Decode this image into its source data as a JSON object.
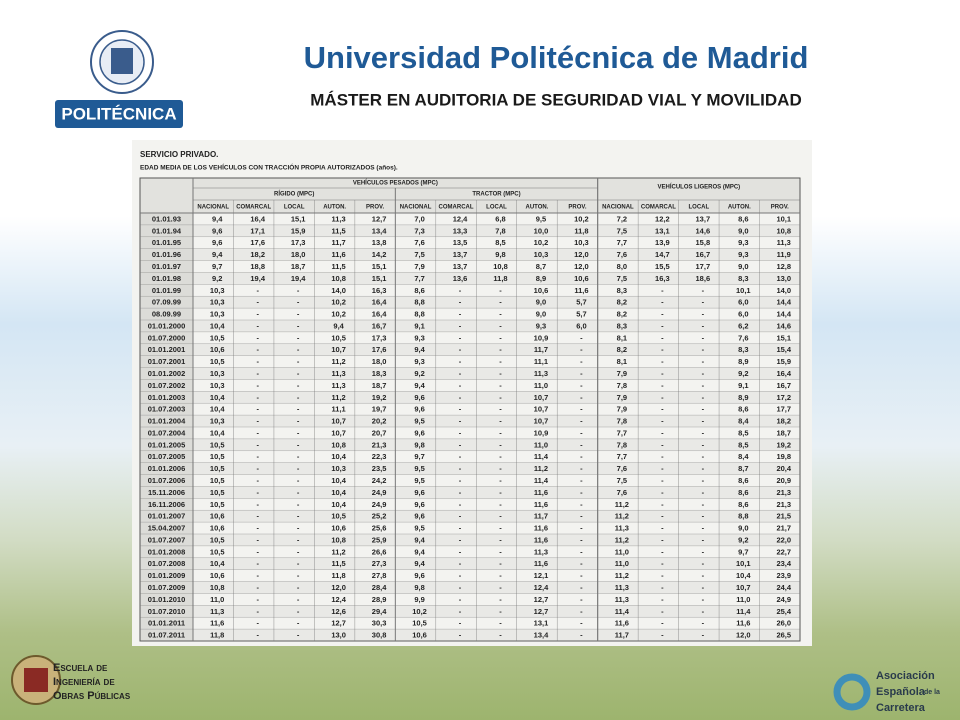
{
  "header": {
    "title": "Universidad Politécnica de Madrid",
    "subtitle": "MÁSTER EN AUDITORIA DE SEGURIDAD VIAL Y MOVILIDAD",
    "logo_text": "POLITÉCNICA"
  },
  "table": {
    "section": "SERVICIO PRIVADO.",
    "caption": "EDAD MEDIA DE LOS VEHÍCULOS CON TRACCIÓN PROPIA AUTORIZADOS (años).",
    "groups": [
      {
        "label": "VEHÍCULOS PESADOS (MPC)",
        "subgroups": [
          {
            "label": "RÍGIDO (MPC)"
          },
          {
            "label": "TRACTOR (MPC)"
          }
        ]
      },
      {
        "label": "VEHÍCULOS LIGEROS (MPC)"
      }
    ],
    "columns": [
      "NACIONAL",
      "COMARCAL",
      "LOCAL",
      "AUTON.",
      "PROV.",
      "NACIONAL",
      "COMARCAL",
      "LOCAL",
      "AUTON.",
      "PROV.",
      "NACIONAL",
      "COMARCAL",
      "LOCAL",
      "AUTON.",
      "PROV."
    ],
    "rows": [
      [
        "01.01.93",
        "9,4",
        "16,4",
        "15,1",
        "11,3",
        "12,7",
        "7,0",
        "12,4",
        "6,8",
        "9,5",
        "10,2",
        "7,2",
        "12,2",
        "13,7",
        "8,6",
        "10,1"
      ],
      [
        "01.01.94",
        "9,6",
        "17,1",
        "15,9",
        "11,5",
        "13,4",
        "7,3",
        "13,3",
        "7,8",
        "10,0",
        "11,8",
        "7,5",
        "13,1",
        "14,6",
        "9,0",
        "10,8"
      ],
      [
        "01.01.95",
        "9,6",
        "17,6",
        "17,3",
        "11,7",
        "13,8",
        "7,6",
        "13,5",
        "8,5",
        "10,2",
        "10,3",
        "7,7",
        "13,9",
        "15,8",
        "9,3",
        "11,3"
      ],
      [
        "01.01.96",
        "9,4",
        "18,2",
        "18,0",
        "11,6",
        "14,2",
        "7,5",
        "13,7",
        "9,8",
        "10,3",
        "12,0",
        "7,6",
        "14,7",
        "16,7",
        "9,3",
        "11,9"
      ],
      [
        "01.01.97",
        "9,7",
        "18,8",
        "18,7",
        "11,5",
        "15,1",
        "7,9",
        "13,7",
        "10,8",
        "8,7",
        "12,0",
        "8,0",
        "15,5",
        "17,7",
        "9,0",
        "12,8"
      ],
      [
        "01.01.98",
        "9,2",
        "19,4",
        "19,4",
        "10,8",
        "15,1",
        "7,7",
        "13,6",
        "11,8",
        "8,9",
        "10,6",
        "7,5",
        "16,3",
        "18,6",
        "8,3",
        "13,0"
      ],
      [
        "01.01.99",
        "10,3",
        "-",
        "-",
        "14,0",
        "16,3",
        "8,6",
        "-",
        "-",
        "10,6",
        "11,6",
        "8,3",
        "-",
        "-",
        "10,1",
        "14,0"
      ],
      [
        "07.09.99",
        "10,3",
        "-",
        "-",
        "10,2",
        "16,4",
        "8,8",
        "-",
        "-",
        "9,0",
        "5,7",
        "8,2",
        "-",
        "-",
        "6,0",
        "14,4"
      ],
      [
        "08.09.99",
        "10,3",
        "-",
        "-",
        "10,2",
        "16,4",
        "8,8",
        "-",
        "-",
        "9,0",
        "5,7",
        "8,2",
        "-",
        "-",
        "6,0",
        "14,4"
      ],
      [
        "01.01.2000",
        "10,4",
        "-",
        "-",
        "9,4",
        "16,7",
        "9,1",
        "-",
        "-",
        "9,3",
        "6,0",
        "8,3",
        "-",
        "-",
        "6,2",
        "14,6"
      ],
      [
        "01.07.2000",
        "10,5",
        "-",
        "-",
        "10,5",
        "17,3",
        "9,3",
        "-",
        "-",
        "10,9",
        "-",
        "8,1",
        "-",
        "-",
        "7,6",
        "15,1"
      ],
      [
        "01.01.2001",
        "10,6",
        "-",
        "-",
        "10,7",
        "17,6",
        "9,4",
        "-",
        "-",
        "11,7",
        "-",
        "8,2",
        "-",
        "-",
        "8,3",
        "15,4"
      ],
      [
        "01.07.2001",
        "10,5",
        "-",
        "-",
        "11,2",
        "18,0",
        "9,3",
        "-",
        "-",
        "11,1",
        "-",
        "8,1",
        "-",
        "-",
        "8,9",
        "15,9"
      ],
      [
        "01.01.2002",
        "10,3",
        "-",
        "-",
        "11,3",
        "18,3",
        "9,2",
        "-",
        "-",
        "11,3",
        "-",
        "7,9",
        "-",
        "-",
        "9,2",
        "16,4"
      ],
      [
        "01.07.2002",
        "10,3",
        "-",
        "-",
        "11,3",
        "18,7",
        "9,4",
        "-",
        "-",
        "11,0",
        "-",
        "7,8",
        "-",
        "-",
        "9,1",
        "16,7"
      ],
      [
        "01.01.2003",
        "10,4",
        "-",
        "-",
        "11,2",
        "19,2",
        "9,6",
        "-",
        "-",
        "10,7",
        "-",
        "7,9",
        "-",
        "-",
        "8,9",
        "17,2"
      ],
      [
        "01.07.2003",
        "10,4",
        "-",
        "-",
        "11,1",
        "19,7",
        "9,6",
        "-",
        "-",
        "10,7",
        "-",
        "7,9",
        "-",
        "-",
        "8,6",
        "17,7"
      ],
      [
        "01.01.2004",
        "10,3",
        "-",
        "-",
        "10,7",
        "20,2",
        "9,5",
        "-",
        "-",
        "10,7",
        "-",
        "7,8",
        "-",
        "-",
        "8,4",
        "18,2"
      ],
      [
        "01.07.2004",
        "10,4",
        "-",
        "-",
        "10,7",
        "20,7",
        "9,6",
        "-",
        "-",
        "10,9",
        "-",
        "7,7",
        "-",
        "-",
        "8,5",
        "18,7"
      ],
      [
        "01.01.2005",
        "10,5",
        "-",
        "-",
        "10,8",
        "21,3",
        "9,8",
        "-",
        "-",
        "11,0",
        "-",
        "7,8",
        "-",
        "-",
        "8,5",
        "19,2"
      ],
      [
        "01.07.2005",
        "10,5",
        "-",
        "-",
        "10,4",
        "22,3",
        "9,7",
        "-",
        "-",
        "11,4",
        "-",
        "7,7",
        "-",
        "-",
        "8,4",
        "19,8"
      ],
      [
        "01.01.2006",
        "10,5",
        "-",
        "-",
        "10,3",
        "23,5",
        "9,5",
        "-",
        "-",
        "11,2",
        "-",
        "7,6",
        "-",
        "-",
        "8,7",
        "20,4"
      ],
      [
        "01.07.2006",
        "10,5",
        "-",
        "-",
        "10,4",
        "24,2",
        "9,5",
        "-",
        "-",
        "11,4",
        "-",
        "7,5",
        "-",
        "-",
        "8,6",
        "20,9"
      ],
      [
        "15.11.2006",
        "10,5",
        "-",
        "-",
        "10,4",
        "24,9",
        "9,6",
        "-",
        "-",
        "11,6",
        "-",
        "7,6",
        "-",
        "-",
        "8,6",
        "21,3"
      ],
      [
        "16.11.2006",
        "10,5",
        "-",
        "-",
        "10,4",
        "24,9",
        "9,6",
        "-",
        "-",
        "11,6",
        "-",
        "11,2",
        "-",
        "-",
        "8,6",
        "21,3"
      ],
      [
        "01.01.2007",
        "10,6",
        "-",
        "-",
        "10,5",
        "25,2",
        "9,6",
        "-",
        "-",
        "11,7",
        "-",
        "11,2",
        "-",
        "-",
        "8,8",
        "21,5"
      ],
      [
        "15.04.2007",
        "10,6",
        "-",
        "-",
        "10,6",
        "25,6",
        "9,5",
        "-",
        "-",
        "11,6",
        "-",
        "11,3",
        "-",
        "-",
        "9,0",
        "21,7"
      ],
      [
        "01.07.2007",
        "10,5",
        "-",
        "-",
        "10,8",
        "25,9",
        "9,4",
        "-",
        "-",
        "11,6",
        "-",
        "11,2",
        "-",
        "-",
        "9,2",
        "22,0"
      ],
      [
        "01.01.2008",
        "10,5",
        "-",
        "-",
        "11,2",
        "26,6",
        "9,4",
        "-",
        "-",
        "11,3",
        "-",
        "11,0",
        "-",
        "-",
        "9,7",
        "22,7"
      ],
      [
        "01.07.2008",
        "10,4",
        "-",
        "-",
        "11,5",
        "27,3",
        "9,4",
        "-",
        "-",
        "11,6",
        "-",
        "11,0",
        "-",
        "-",
        "10,1",
        "23,4"
      ],
      [
        "01.01.2009",
        "10,6",
        "-",
        "-",
        "11,8",
        "27,8",
        "9,6",
        "-",
        "-",
        "12,1",
        "-",
        "11,2",
        "-",
        "-",
        "10,4",
        "23,9"
      ],
      [
        "01.07.2009",
        "10,8",
        "-",
        "-",
        "12,0",
        "28,4",
        "9,8",
        "-",
        "-",
        "12,4",
        "-",
        "11,3",
        "-",
        "-",
        "10,7",
        "24,4"
      ],
      [
        "01.01.2010",
        "11,0",
        "-",
        "-",
        "12,4",
        "28,9",
        "9,9",
        "-",
        "-",
        "12,7",
        "-",
        "11,3",
        "-",
        "-",
        "11,0",
        "24,9"
      ],
      [
        "01.07.2010",
        "11,3",
        "-",
        "-",
        "12,6",
        "29,4",
        "10,2",
        "-",
        "-",
        "12,7",
        "-",
        "11,4",
        "-",
        "-",
        "11,4",
        "25,4"
      ],
      [
        "01.01.2011",
        "11,6",
        "-",
        "-",
        "12,7",
        "30,3",
        "10,5",
        "-",
        "-",
        "13,1",
        "-",
        "11,6",
        "-",
        "-",
        "11,6",
        "26,0"
      ],
      [
        "01.07.2011",
        "11,8",
        "-",
        "-",
        "13,0",
        "30,8",
        "10,6",
        "-",
        "-",
        "13,4",
        "-",
        "11,7",
        "-",
        "-",
        "12,0",
        "26,5"
      ]
    ]
  },
  "footer": {
    "left": [
      "Escuela de",
      "Ingeniería de",
      "Obras Públicas"
    ],
    "right": [
      "Asociación",
      "Española",
      "de la",
      "Carretera"
    ]
  }
}
